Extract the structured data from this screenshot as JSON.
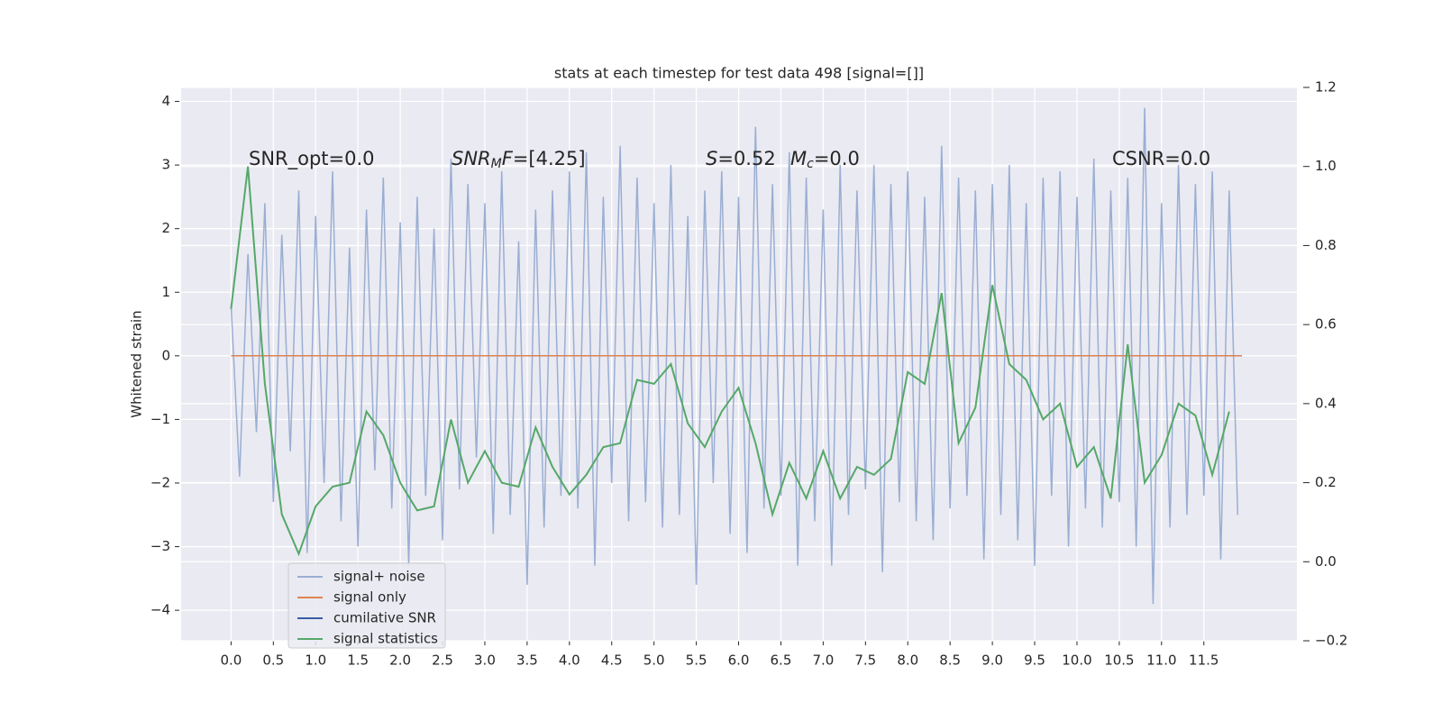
{
  "chart_data": {
    "type": "line",
    "title": "stats at each timestep for test data 498 [signal=[]]",
    "ylabel": "Whitened strain",
    "xlim": [
      -0.59,
      12.6
    ],
    "ylim": [
      -4.48,
      4.22
    ],
    "y2lim": [
      -0.2,
      1.2
    ],
    "xticks": [
      {
        "value": 0,
        "label": "0.0"
      },
      0.5,
      {
        "value": 1,
        "label": "1.0"
      },
      1.5,
      {
        "value": 2,
        "label": "2.0"
      },
      2.5,
      {
        "value": 3,
        "label": "3.0"
      },
      3.5,
      {
        "value": 4,
        "label": "4.0"
      },
      4.5,
      {
        "value": 5,
        "label": "5.0"
      },
      5.5,
      {
        "value": 6,
        "label": "6.0"
      },
      6.5,
      {
        "value": 7,
        "label": "7.0"
      },
      7.5,
      {
        "value": 8,
        "label": "8.0"
      },
      8.5,
      {
        "value": 9,
        "label": "9.0"
      },
      9.5,
      {
        "value": 10,
        "label": "10.0"
      },
      10.5,
      {
        "value": 11,
        "label": "11.0"
      },
      11.5
    ],
    "yticks": [
      {
        "value": -4,
        "label": "−4"
      },
      {
        "value": -3,
        "label": "−3"
      },
      {
        "value": -2,
        "label": "−2"
      },
      {
        "value": -1,
        "label": "−1"
      },
      0,
      1,
      2,
      3,
      4
    ],
    "y2ticks": [
      {
        "value": -0.2,
        "label": "−0.2"
      },
      {
        "value": 0,
        "label": "0.0"
      },
      0.2,
      0.4,
      0.6,
      0.8,
      {
        "value": 1,
        "label": "1.0"
      },
      1.2
    ],
    "grid": true,
    "series": [
      {
        "name": "signal+ noise",
        "color": "#9aaed3",
        "x": [
          0,
          0.1,
          0.2,
          0.3,
          0.4,
          0.5,
          0.6,
          0.7,
          0.8,
          0.9,
          1,
          1.1,
          1.2,
          1.3,
          1.4,
          1.5,
          1.6,
          1.7,
          1.8,
          1.9,
          2,
          2.1,
          2.2,
          2.3,
          2.4,
          2.5,
          2.6,
          2.7,
          2.8,
          2.9,
          3,
          3.1,
          3.2,
          3.3,
          3.4,
          3.5,
          3.6,
          3.7,
          3.8,
          3.9,
          4,
          4.1,
          4.2,
          4.3,
          4.4,
          4.5,
          4.6,
          4.7,
          4.8,
          4.9,
          5,
          5.1,
          5.2,
          5.3,
          5.4,
          5.5,
          5.6,
          5.7,
          5.8,
          5.9,
          6,
          6.1,
          6.2,
          6.3,
          6.4,
          6.5,
          6.6,
          6.7,
          6.8,
          6.9,
          7,
          7.1,
          7.2,
          7.3,
          7.4,
          7.5,
          7.6,
          7.7,
          7.8,
          7.9,
          8,
          8.1,
          8.2,
          8.3,
          8.4,
          8.5,
          8.6,
          8.7,
          8.8,
          8.9,
          9,
          9.1,
          9.2,
          9.3,
          9.4,
          9.5,
          9.6,
          9.7,
          9.8,
          9.9,
          10,
          10.1,
          10.2,
          10.3,
          10.4,
          10.5,
          10.6,
          10.7,
          10.8,
          10.9,
          11,
          11.1,
          11.2,
          11.3,
          11.4,
          11.5,
          11.6,
          11.7,
          11.8,
          11.9
        ],
        "values": [
          0.8,
          -1.9,
          1.6,
          -1.2,
          2.4,
          -2.3,
          1.9,
          -1.5,
          2.6,
          -3.1,
          2.2,
          -2.0,
          2.9,
          -2.6,
          1.7,
          -3.0,
          2.3,
          -1.8,
          2.8,
          -2.4,
          2.1,
          -3.3,
          2.5,
          -2.2,
          2.0,
          -2.9,
          3.1,
          -2.1,
          2.7,
          -1.6,
          2.4,
          -2.8,
          2.9,
          -2.5,
          1.8,
          -3.6,
          2.3,
          -2.7,
          2.6,
          -2.2,
          2.9,
          -2.4,
          3.2,
          -3.3,
          2.5,
          -2.0,
          3.3,
          -2.6,
          2.8,
          -2.3,
          2.4,
          -2.7,
          3.0,
          -2.5,
          2.2,
          -3.6,
          2.6,
          -2.0,
          2.9,
          -2.8,
          2.5,
          -3.1,
          3.6,
          -2.4,
          2.7,
          -2.2,
          3.2,
          -3.3,
          2.8,
          -2.6,
          2.3,
          -3.3,
          3.0,
          -2.5,
          2.6,
          -2.1,
          3.0,
          -3.4,
          2.7,
          -2.3,
          2.9,
          -2.6,
          2.5,
          -2.9,
          3.3,
          -2.4,
          2.8,
          -2.2,
          2.6,
          -3.2,
          2.7,
          -2.5,
          3.0,
          -2.9,
          2.4,
          -3.3,
          2.8,
          -2.2,
          2.9,
          -3.0,
          2.5,
          -2.4,
          3.1,
          -2.7,
          2.6,
          -2.3,
          2.8,
          -3.0,
          3.9,
          -3.9,
          2.4,
          -2.7,
          3.0,
          -2.5,
          2.7,
          -2.2,
          2.9,
          -3.2,
          2.6,
          -2.5
        ]
      },
      {
        "name": "signal only",
        "color": "#dd8452",
        "x": [
          0,
          11.95
        ],
        "values": [
          0,
          0
        ]
      },
      {
        "name": "cumilative SNR",
        "color": "#3a5ca3"
      },
      {
        "name": "signal statistics",
        "color": "#55a868",
        "axis": "y2",
        "x": [
          0,
          0.2,
          0.4,
          0.6,
          0.8,
          1,
          1.2,
          1.4,
          1.6,
          1.8,
          2,
          2.2,
          2.4,
          2.6,
          2.8,
          3,
          3.2,
          3.4,
          3.6,
          3.8,
          4,
          4.2,
          4.4,
          4.6,
          4.8,
          5,
          5.2,
          5.4,
          5.6,
          5.8,
          6,
          6.2,
          6.4,
          6.6,
          6.8,
          7,
          7.2,
          7.4,
          7.6,
          7.8,
          8,
          8.2,
          8.4,
          8.6,
          8.8,
          9,
          9.2,
          9.4,
          9.6,
          9.8,
          10,
          10.2,
          10.4,
          10.6,
          10.8,
          11,
          11.2,
          11.4,
          11.6,
          11.8
        ],
        "values": [
          0.64,
          1.0,
          0.45,
          0.12,
          0.02,
          0.14,
          0.19,
          0.2,
          0.38,
          0.32,
          0.2,
          0.13,
          0.14,
          0.36,
          0.2,
          0.28,
          0.2,
          0.19,
          0.34,
          0.24,
          0.17,
          0.22,
          0.29,
          0.3,
          0.46,
          0.45,
          0.5,
          0.35,
          0.29,
          0.38,
          0.44,
          0.3,
          0.12,
          0.25,
          0.16,
          0.28,
          0.16,
          0.24,
          0.22,
          0.26,
          0.48,
          0.45,
          0.68,
          0.3,
          0.39,
          0.7,
          0.5,
          0.46,
          0.36,
          0.4,
          0.24,
          0.29,
          0.16,
          0.55,
          0.2,
          0.27,
          0.4,
          0.37,
          0.22,
          0.38
        ]
      }
    ],
    "annotations": [
      {
        "parts": [
          {
            "text": "SNR_opt=0.0"
          }
        ]
      },
      {
        "parts": [
          {
            "text": "SNR",
            "style": "italic"
          },
          {
            "text": "M",
            "style": "italic-sub"
          },
          {
            "text": "F",
            "style": "italic"
          },
          {
            "text": "=[4.25]"
          }
        ]
      },
      {
        "parts": [
          {
            "text": "S",
            "style": "italic"
          },
          {
            "text": "=0.52"
          }
        ]
      },
      {
        "parts": [
          {
            "text": "M",
            "style": "italic"
          },
          {
            "text": "c",
            "style": "italic-sub"
          },
          {
            "text": "=0.0"
          }
        ]
      },
      {
        "parts": [
          {
            "text": "CSNR=0.0"
          }
        ]
      }
    ]
  }
}
